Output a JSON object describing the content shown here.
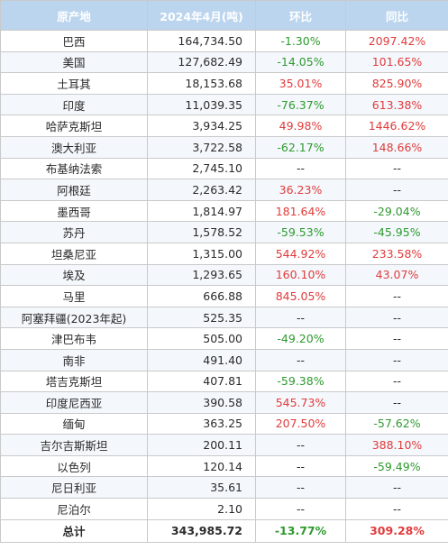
{
  "headers": [
    "原产地",
    "2024年4月(吨)",
    "环比",
    "同比"
  ],
  "rows": [
    [
      "巴西",
      "164,734.50",
      "-1.30%",
      "2097.42%"
    ],
    [
      "美国",
      "127,682.49",
      "-14.05%",
      "101.65%"
    ],
    [
      "土耳其",
      "18,153.68",
      "35.01%",
      "825.90%"
    ],
    [
      "印度",
      "11,039.35",
      "-76.37%",
      "613.38%"
    ],
    [
      "哈萨克斯坦",
      "3,934.25",
      "49.98%",
      "1446.62%"
    ],
    [
      "澳大利亚",
      "3,722.58",
      "-62.17%",
      "148.66%"
    ],
    [
      "布基纳法索",
      "2,745.10",
      "--",
      "--"
    ],
    [
      "阿根廷",
      "2,263.42",
      "36.23%",
      "--"
    ],
    [
      "墨西哥",
      "1,814.97",
      "181.64%",
      "-29.04%"
    ],
    [
      "苏丹",
      "1,578.52",
      "-59.53%",
      "-45.95%"
    ],
    [
      "坦桑尼亚",
      "1,315.00",
      "544.92%",
      "233.58%"
    ],
    [
      "埃及",
      "1,293.65",
      "160.10%",
      "43.07%"
    ],
    [
      "马里",
      "666.88",
      "845.05%",
      "--"
    ],
    [
      "阿塞拜疆(2023年起)",
      "525.35",
      "--",
      "--"
    ],
    [
      "津巴布韦",
      "505.00",
      "-49.20%",
      "--"
    ],
    [
      "南非",
      "491.40",
      "--",
      "--"
    ],
    [
      "塔吉克斯坦",
      "407.81",
      "-59.38%",
      "--"
    ],
    [
      "印度尼西亚",
      "390.58",
      "545.73%",
      "--"
    ],
    [
      "缅甸",
      "363.25",
      "207.50%",
      "-57.62%"
    ],
    [
      "吉尔吉斯斯坦",
      "200.11",
      "--",
      "388.10%"
    ],
    [
      "以色列",
      "120.14",
      "--",
      "-59.49%"
    ],
    [
      "尼日利亚",
      "35.61",
      "--",
      "--"
    ],
    [
      "尼泊尔",
      "2.10",
      "--",
      "--"
    ]
  ],
  "total": [
    "总计",
    "343,985.72",
    "-13.77%",
    "309.28%"
  ],
  "colors": {
    "header_bg": "#bcd5ee",
    "negative": "#2f9a2f",
    "positive": "#e13b3b"
  }
}
